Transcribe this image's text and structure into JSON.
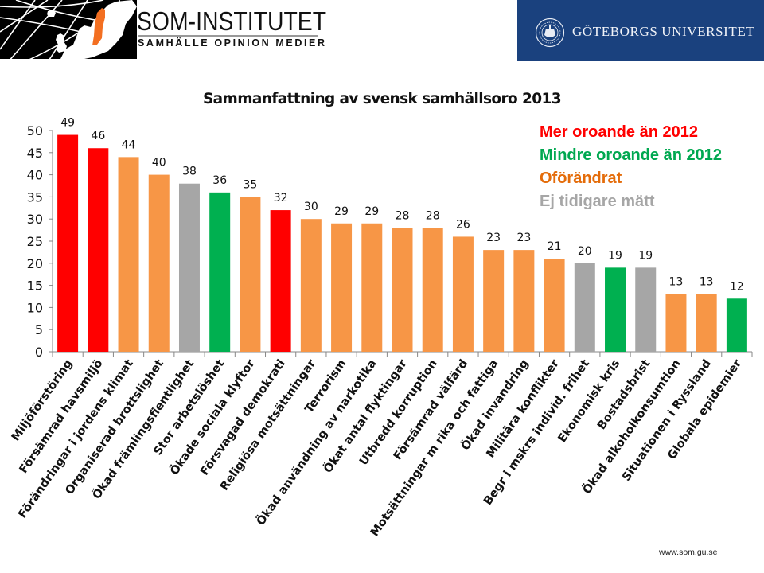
{
  "header": {
    "som_logo": {
      "title": "SOM-INSTITUTET",
      "subtitle": "SAMHÄLLE OPINION MEDIER",
      "accent": "#f36f21"
    },
    "university": {
      "name": "GÖTEBORGS UNIVERSITET",
      "background": "#1a417e"
    }
  },
  "footer": {
    "url": "www.som.gu.se"
  },
  "legend": [
    {
      "label": "Mer oroande än 2012",
      "key": "more",
      "color": "#ff0000"
    },
    {
      "label": "Mindre oroande än 2012",
      "key": "less",
      "color": "#00a850"
    },
    {
      "label": "Oförändrat",
      "key": "same",
      "color": "#e46c0a"
    },
    {
      "label": "Ej tidigare mätt",
      "key": "new",
      "color": "#a6a6a6"
    }
  ],
  "chart_data": {
    "type": "bar",
    "title": "Sammanfattning av svensk samhällsoro 2013",
    "xlabel": "",
    "ylabel": "",
    "ylim": [
      0,
      50
    ],
    "yticks": [
      0,
      5,
      10,
      15,
      20,
      25,
      30,
      35,
      40,
      45,
      50
    ],
    "grid": false,
    "legend_position": "top-right",
    "status_colors": {
      "more": "#ff0000",
      "less": "#00b050",
      "same": "#f79646",
      "new": "#a6a6a6"
    },
    "categories": [
      "Miljöförstöring",
      "Försämrad havsmiljö",
      "Förändringar i jordens klimat",
      "Organiserad brottslighet",
      "Ökad främlingsfientlighet",
      "Stor arbetslöshet",
      "Ökade sociala klyftor",
      "Försvagad demokrati",
      "Religiösa motsättningar",
      "Terrorism",
      "Ökad användning av narkotika",
      "Ökat antal flyktingar",
      "Utbredd korruption",
      "Försämrad välfärd",
      "Motsättningar m rika och fattiga",
      "Ökad invandring",
      "Militära konflikter",
      "Begr i mskrs individ. frihet",
      "Ekonomisk kris",
      "Bostadsbrist",
      "Ökad alkoholkonsumtion",
      "Situationen i Ryssland",
      "Globala epidemier"
    ],
    "values": [
      49,
      46,
      44,
      40,
      38,
      36,
      35,
      32,
      30,
      29,
      29,
      28,
      28,
      26,
      23,
      23,
      21,
      20,
      19,
      19,
      13,
      13,
      12
    ],
    "status": [
      "more",
      "more",
      "same",
      "same",
      "new",
      "less",
      "same",
      "more",
      "same",
      "same",
      "same",
      "same",
      "same",
      "same",
      "same",
      "same",
      "same",
      "new",
      "less",
      "new",
      "same",
      "same",
      "less"
    ],
    "data_labels": [
      "49",
      "46",
      "44",
      "40",
      "38",
      "36",
      "35",
      "32",
      "30",
      "29",
      "29",
      "28",
      "28",
      "26",
      "23",
      "23",
      "21",
      "20",
      "19",
      "19",
      "13",
      "13",
      "12"
    ]
  }
}
